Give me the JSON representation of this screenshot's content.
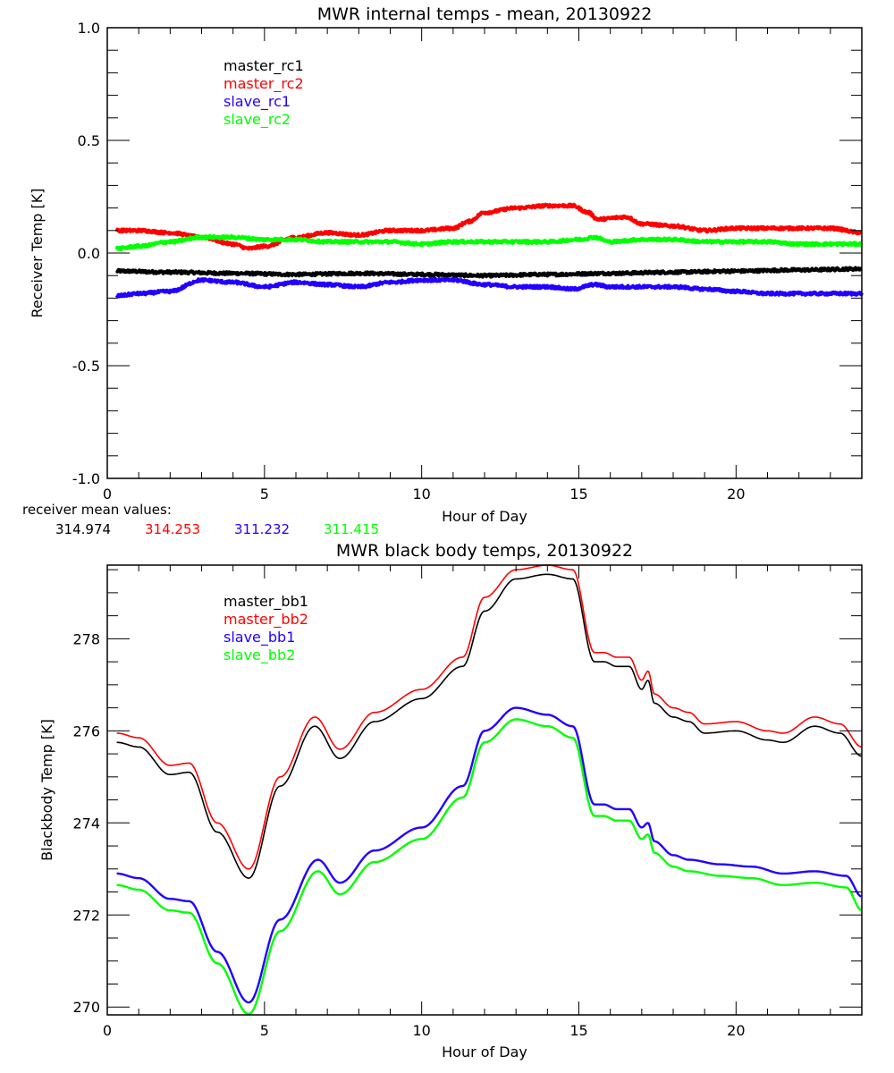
{
  "figure": {
    "receiver_means_label": "receiver mean values:",
    "receiver_means": [
      {
        "value": "314.974",
        "color": "#000000"
      },
      {
        "value": "314.253",
        "color": "#ff0000"
      },
      {
        "value": "311.232",
        "color": "#2200ff"
      },
      {
        "value": "311.415",
        "color": "#00ff00"
      }
    ]
  },
  "chart_data": [
    {
      "type": "line",
      "title": "MWR internal temps - mean, 20130922",
      "xlabel": "Hour of Day",
      "ylabel": "Receiver Temp [K]",
      "xlim": [
        0,
        24
      ],
      "ylim": [
        -1.0,
        1.0
      ],
      "xticks": [
        0,
        5,
        10,
        15,
        20
      ],
      "xtick_labels": [
        "0",
        "5",
        "10",
        "15",
        "20"
      ],
      "yticks": [
        -1.0,
        -0.5,
        0.0,
        0.5,
        1.0
      ],
      "ytick_labels": [
        "-1.0",
        "-0.5",
        "0.0",
        "0.5",
        "1.0"
      ],
      "x_minor_step": 1,
      "y_minor_step": 0.1,
      "grid": false,
      "legend_position": "top-left",
      "noisy": true,
      "series": [
        {
          "name": "master_rc1",
          "color": "#000000",
          "x": [
            0.3,
            2,
            4,
            6,
            8,
            10,
            12,
            14,
            16,
            18,
            20,
            22,
            24
          ],
          "y": [
            -0.08,
            -0.085,
            -0.09,
            -0.095,
            -0.09,
            -0.095,
            -0.1,
            -0.095,
            -0.09,
            -0.085,
            -0.08,
            -0.075,
            -0.07
          ]
        },
        {
          "name": "master_rc2",
          "color": "#ff0000",
          "x": [
            0.3,
            1,
            2,
            3,
            4,
            4.5,
            5,
            6,
            7,
            8,
            9,
            10,
            11,
            11.5,
            12,
            13,
            14,
            14.8,
            15.3,
            15.6,
            16.5,
            17,
            18,
            19,
            20,
            21,
            22,
            23,
            24
          ],
          "y": [
            0.1,
            0.1,
            0.09,
            0.07,
            0.04,
            0.02,
            0.03,
            0.07,
            0.09,
            0.08,
            0.1,
            0.1,
            0.11,
            0.14,
            0.18,
            0.2,
            0.21,
            0.21,
            0.18,
            0.15,
            0.16,
            0.13,
            0.12,
            0.1,
            0.11,
            0.11,
            0.11,
            0.11,
            0.09
          ]
        },
        {
          "name": "slave_rc1",
          "color": "#2200ff",
          "x": [
            0.3,
            1,
            2,
            3,
            4,
            5,
            6,
            7,
            8,
            9,
            10,
            11,
            12,
            13,
            14,
            14.8,
            15.5,
            16,
            17,
            18,
            19,
            20,
            21,
            22,
            23,
            24
          ],
          "y": [
            -0.19,
            -0.18,
            -0.17,
            -0.12,
            -0.13,
            -0.15,
            -0.13,
            -0.14,
            -0.15,
            -0.13,
            -0.12,
            -0.12,
            -0.14,
            -0.15,
            -0.15,
            -0.16,
            -0.14,
            -0.15,
            -0.15,
            -0.15,
            -0.16,
            -0.17,
            -0.18,
            -0.18,
            -0.18,
            -0.18
          ]
        },
        {
          "name": "slave_rc2",
          "color": "#00ff00",
          "x": [
            0.3,
            1,
            2,
            3,
            4,
            5,
            6,
            7,
            8,
            9,
            10,
            11,
            12,
            13,
            14,
            15,
            15.5,
            16,
            17,
            18,
            19,
            20,
            21,
            22,
            23,
            24
          ],
          "y": [
            0.02,
            0.03,
            0.05,
            0.07,
            0.07,
            0.06,
            0.06,
            0.05,
            0.05,
            0.05,
            0.04,
            0.05,
            0.05,
            0.05,
            0.05,
            0.06,
            0.07,
            0.05,
            0.06,
            0.06,
            0.05,
            0.05,
            0.05,
            0.04,
            0.04,
            0.04
          ]
        }
      ]
    },
    {
      "type": "line",
      "title": "MWR black body temps, 20130922",
      "xlabel": "Hour of Day",
      "ylabel": "Blackbody Temp [K]",
      "xlim": [
        0,
        24
      ],
      "ylim": [
        269.83,
        279.6
      ],
      "xticks": [
        0,
        5,
        10,
        15,
        20
      ],
      "xtick_labels": [
        "0",
        "5",
        "10",
        "15",
        "20"
      ],
      "yticks": [
        270,
        272,
        274,
        276,
        278
      ],
      "ytick_labels": [
        "270",
        "272",
        "274",
        "276",
        "278"
      ],
      "x_minor_step": 1,
      "y_minor_step": 0.5,
      "grid": false,
      "legend_position": "top-left",
      "noisy": false,
      "series": [
        {
          "name": "master_bb1",
          "color": "#000000",
          "x": [
            0.3,
            1,
            2,
            2.6,
            3.5,
            4.5,
            5.5,
            6.6,
            7.4,
            8.5,
            10,
            11.3,
            12,
            13,
            14,
            14.8,
            15.5,
            15.8,
            16.2,
            16.6,
            17,
            17.2,
            17.4,
            18,
            18.5,
            19,
            20,
            21,
            21.5,
            22.5,
            23.3,
            24
          ],
          "y": [
            275.75,
            275.65,
            275.05,
            275.1,
            273.8,
            272.8,
            274.8,
            276.1,
            275.4,
            276.2,
            276.7,
            277.4,
            278.6,
            279.3,
            279.4,
            279.3,
            277.5,
            277.5,
            277.4,
            277.4,
            276.9,
            277.1,
            276.6,
            276.3,
            276.2,
            275.95,
            276.0,
            275.8,
            275.75,
            276.1,
            275.95,
            275.45
          ]
        },
        {
          "name": "master_bb2",
          "color": "#ff0000",
          "x": [
            0.3,
            1,
            2,
            2.6,
            3.5,
            4.5,
            5.5,
            6.6,
            7.4,
            8.5,
            10,
            11.3,
            12,
            13,
            14,
            14.8,
            15.5,
            15.8,
            16.2,
            16.6,
            17,
            17.2,
            17.4,
            18,
            18.5,
            19,
            20,
            21,
            21.5,
            22.5,
            23.3,
            24
          ],
          "y": [
            275.95,
            275.85,
            275.25,
            275.3,
            274.0,
            273.0,
            275.0,
            276.3,
            275.6,
            276.4,
            276.9,
            277.6,
            278.9,
            279.5,
            279.6,
            279.5,
            277.7,
            277.7,
            277.6,
            277.6,
            277.1,
            277.3,
            276.8,
            276.5,
            276.4,
            276.15,
            276.2,
            276.0,
            275.95,
            276.3,
            276.15,
            275.65
          ]
        },
        {
          "name": "slave_bb1",
          "color": "#2200ff",
          "x": [
            0.3,
            1,
            2,
            2.6,
            3.5,
            4.5,
            5.5,
            6.7,
            7.4,
            8.5,
            10,
            11.3,
            12,
            13,
            14,
            14.8,
            15.5,
            15.8,
            16.2,
            16.6,
            17,
            17.2,
            17.4,
            18,
            18.5,
            19.5,
            20.5,
            21.5,
            22.5,
            23.5,
            24
          ],
          "y": [
            272.9,
            272.8,
            272.35,
            272.3,
            271.2,
            270.1,
            271.9,
            273.2,
            272.7,
            273.4,
            273.9,
            274.8,
            276.0,
            276.5,
            276.35,
            276.1,
            274.4,
            274.4,
            274.3,
            274.3,
            273.9,
            274.0,
            273.6,
            273.3,
            273.2,
            273.1,
            273.05,
            272.9,
            272.95,
            272.85,
            272.4
          ]
        },
        {
          "name": "slave_bb2",
          "color": "#00ff00",
          "x": [
            0.3,
            1,
            2,
            2.6,
            3.5,
            4.5,
            5.5,
            6.7,
            7.4,
            8.5,
            10,
            11.3,
            12,
            13,
            14,
            14.8,
            15.5,
            15.8,
            16.2,
            16.6,
            17,
            17.2,
            17.4,
            18,
            18.5,
            19.5,
            20.5,
            21.5,
            22.5,
            23.5,
            24
          ],
          "y": [
            272.65,
            272.55,
            272.1,
            272.05,
            270.95,
            269.85,
            271.65,
            272.95,
            272.45,
            273.15,
            273.65,
            274.55,
            275.75,
            276.25,
            276.1,
            275.85,
            274.15,
            274.15,
            274.05,
            274.05,
            273.65,
            273.75,
            273.35,
            273.05,
            272.95,
            272.85,
            272.8,
            272.65,
            272.7,
            272.6,
            272.1
          ]
        }
      ]
    }
  ]
}
